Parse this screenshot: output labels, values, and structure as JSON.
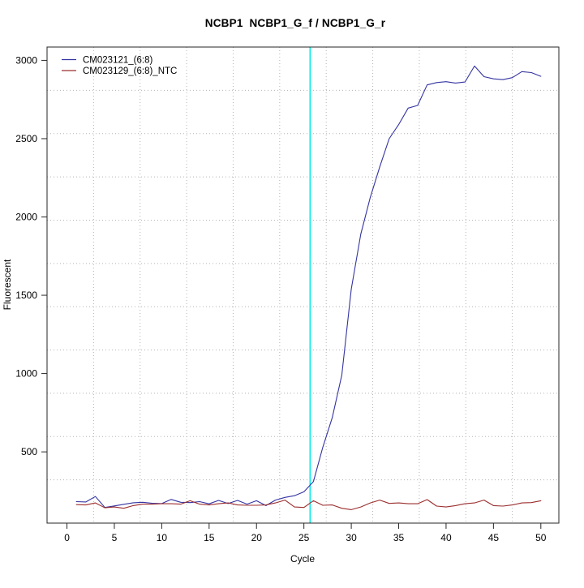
{
  "chart_data": {
    "type": "line",
    "title": "NCBP1  NCBP1_G_f / NCBP1_G_r",
    "xlabel": "Cycle",
    "ylabel": "Fluorescent",
    "xlim": [
      -2.1,
      51.9
    ],
    "ylim": [
      45,
      3085
    ],
    "x_ticks": [
      0,
      5,
      10,
      15,
      20,
      25,
      30,
      35,
      40,
      45,
      50
    ],
    "y_ticks": [
      500,
      1000,
      1500,
      2000,
      2500,
      3000
    ],
    "grid": {
      "nx": 11,
      "ny": 11,
      "style": "dotted",
      "color": "#b3b3b3"
    },
    "legend_position": "topleft",
    "x": [
      1,
      2,
      3,
      4,
      5,
      6,
      7,
      8,
      9,
      10,
      11,
      12,
      13,
      14,
      15,
      16,
      17,
      18,
      19,
      20,
      21,
      22,
      23,
      24,
      25,
      26,
      27,
      28,
      29,
      30,
      31,
      32,
      33,
      34,
      35,
      36,
      37,
      38,
      39,
      40,
      41,
      42,
      43,
      44,
      45,
      46,
      47,
      48,
      49,
      50
    ],
    "series": [
      {
        "name": "CM023121_(6:8)",
        "color": "#3333a2",
        "values": [
          182,
          180,
          215,
          145,
          155,
          165,
          175,
          178,
          172,
          170,
          196,
          178,
          176,
          182,
          168,
          190,
          170,
          190,
          166,
          188,
          157,
          192,
          209,
          220,
          245,
          310,
          530,
          720,
          990,
          1540,
          1890,
          2125,
          2320,
          2500,
          2590,
          2695,
          2712,
          2843,
          2858,
          2864,
          2855,
          2862,
          2964,
          2896,
          2882,
          2877,
          2890,
          2928,
          2922,
          2898
        ]
      },
      {
        "name": "CM023129_(6:8)_NTC",
        "color": "#9b2d2d",
        "values": [
          163,
          161,
          174,
          143,
          148,
          140,
          157,
          166,
          166,
          169,
          169,
          166,
          188,
          166,
          161,
          169,
          174,
          161,
          159,
          159,
          161,
          174,
          192,
          148,
          145,
          188,
          159,
          161,
          140,
          131,
          148,
          174,
          192,
          171,
          174,
          169,
          169,
          195,
          154,
          148,
          157,
          169,
          174,
          192,
          157,
          154,
          161,
          174,
          176,
          188
        ]
      }
    ],
    "threshold_vline": {
      "x": 25.65,
      "color": "#00eaea"
    }
  },
  "frame": {
    "box_color": "#262626",
    "tick_color": "#262626"
  }
}
